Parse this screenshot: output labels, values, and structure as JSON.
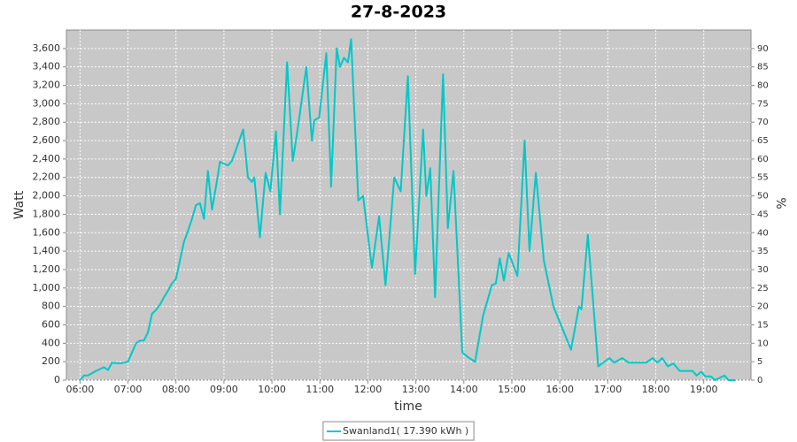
{
  "chart_data": {
    "type": "line",
    "title": "27-8-2023",
    "x_label": "time",
    "y_label": "Watt",
    "y2_label": "%",
    "xlim": [
      "05:43",
      "19:59"
    ],
    "xticks": [
      "06:00",
      "07:00",
      "08:00",
      "09:00",
      "10:00",
      "11:00",
      "12:00",
      "13:00",
      "14:00",
      "15:00",
      "16:00",
      "17:00",
      "18:00",
      "19:00"
    ],
    "ylim": [
      0,
      3800
    ],
    "yticks": [
      0,
      200,
      400,
      600,
      800,
      {
        "value": 1000,
        "label": "1,000"
      },
      {
        "value": 1200,
        "label": "1,200"
      },
      {
        "value": 1400,
        "label": "1,400"
      },
      {
        "value": 1600,
        "label": "1,600"
      },
      {
        "value": 1800,
        "label": "1,800"
      },
      {
        "value": 2000,
        "label": "2,000"
      },
      {
        "value": 2200,
        "label": "2,200"
      },
      {
        "value": 2400,
        "label": "2,400"
      },
      {
        "value": 2600,
        "label": "2,600"
      },
      {
        "value": 2800,
        "label": "2,800"
      },
      {
        "value": 3000,
        "label": "3,000"
      },
      {
        "value": 3200,
        "label": "3,200"
      },
      {
        "value": 3400,
        "label": "3,400"
      },
      {
        "value": 3600,
        "label": "3,600"
      }
    ],
    "y2lim": [
      0,
      95
    ],
    "y2ticks": [
      0,
      5,
      10,
      15,
      20,
      25,
      30,
      35,
      40,
      45,
      50,
      55,
      60,
      65,
      70,
      75,
      80,
      85,
      90
    ],
    "grid": true,
    "legend": "bottom",
    "x": [
      "06:00",
      "06:05",
      "06:10",
      "06:20",
      "06:30",
      "06:35",
      "06:40",
      "06:50",
      "07:00",
      "07:10",
      "07:15",
      "07:20",
      "07:25",
      "07:30",
      "07:35",
      "07:40",
      "07:45",
      "07:50",
      "07:55",
      "08:00",
      "08:05",
      "08:10",
      "08:15",
      "08:20",
      "08:25",
      "08:30",
      "08:35",
      "08:40",
      "08:45",
      "08:50",
      "08:55",
      "09:00",
      "09:05",
      "09:10",
      "09:15",
      "09:24",
      "09:30",
      "09:35",
      "09:38",
      "09:45",
      "09:52",
      "09:58",
      "10:05",
      "10:10",
      "10:19",
      "10:26",
      "10:30",
      "10:35",
      "10:43",
      "10:50",
      "10:53",
      "10:59",
      "11:08",
      "11:14",
      "11:21",
      "11:25",
      "11:30",
      "11:35",
      "11:39",
      "11:48",
      "11:54",
      "12:05",
      "12:14",
      "12:22",
      "12:33",
      "12:41",
      "12:50",
      "12:59",
      "13:09",
      "13:13",
      "13:18",
      "13:24",
      "13:34",
      "13:40",
      "13:47",
      "13:58",
      "14:05",
      "14:14",
      "14:24",
      "14:35",
      "14:40",
      "14:45",
      "14:50",
      "14:56",
      "15:07",
      "15:16",
      "15:22",
      "15:30",
      "15:40",
      "15:52",
      "16:14",
      "16:24",
      "16:27",
      "16:35",
      "16:48",
      "17:02",
      "17:08",
      "17:18",
      "17:26",
      "17:48",
      "17:56",
      "18:02",
      "18:08",
      "18:15",
      "18:22",
      "18:30",
      "18:46",
      "18:51",
      "18:57",
      "19:02",
      "19:09",
      "19:14",
      "19:26",
      "19:31",
      "19:39"
    ],
    "series": [
      {
        "name": "Swanland1( 17.390 kWh )",
        "color": "#00c8c8",
        "values": [
          0,
          50,
          50,
          100,
          140,
          110,
          190,
          180,
          200,
          400,
          430,
          430,
          520,
          720,
          760,
          820,
          900,
          970,
          1050,
          1100,
          1300,
          1500,
          1620,
          1750,
          1900,
          1920,
          1750,
          2270,
          1850,
          2100,
          2370,
          2350,
          2330,
          2380,
          2500,
          2720,
          2200,
          2150,
          2200,
          1550,
          2250,
          2050,
          2700,
          1800,
          3450,
          2380,
          2600,
          2900,
          3400,
          2600,
          2820,
          2850,
          3550,
          2100,
          3600,
          3400,
          3500,
          3450,
          3700,
          1950,
          2000,
          1220,
          1780,
          1030,
          2200,
          2050,
          3300,
          1150,
          2720,
          2000,
          2300,
          900,
          3320,
          1650,
          2270,
          300,
          250,
          200,
          700,
          1030,
          1050,
          1320,
          1080,
          1380,
          1130,
          2600,
          1400,
          2250,
          1300,
          800,
          330,
          800,
          770,
          1580,
          150,
          240,
          190,
          240,
          190,
          190,
          240,
          190,
          240,
          150,
          180,
          100,
          100,
          50,
          90,
          40,
          40,
          0,
          50,
          0,
          0
        ]
      }
    ]
  }
}
